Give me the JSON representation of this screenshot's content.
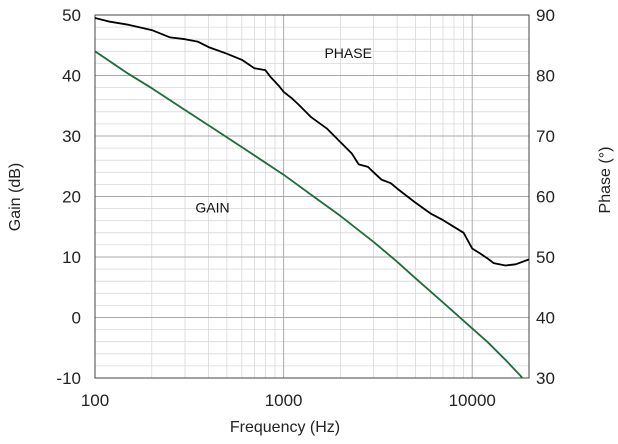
{
  "chart_data": {
    "type": "line",
    "xscale": "log",
    "xlabel": "Frequency (Hz)",
    "ylabel_left": "Gain (dB)",
    "ylabel_right": "Phase (°)",
    "xlim": [
      100,
      20000
    ],
    "ylim_left": [
      -10,
      50
    ],
    "ylim_right": [
      30,
      90
    ],
    "x_ticks": [
      {
        "value": 100,
        "label": "100"
      },
      {
        "value": 1000,
        "label": "1000"
      },
      {
        "value": 10000,
        "label": "10000"
      }
    ],
    "y_left_ticks": [
      {
        "value": 50,
        "label": "50"
      },
      {
        "value": 40,
        "label": "40"
      },
      {
        "value": 30,
        "label": "30"
      },
      {
        "value": 20,
        "label": "20"
      },
      {
        "value": 10,
        "label": "10"
      },
      {
        "value": 0,
        "label": "0"
      },
      {
        "value": -10,
        "label": "-10"
      }
    ],
    "y_right_ticks": [
      {
        "value": 90,
        "label": "90"
      },
      {
        "value": 80,
        "label": "80"
      },
      {
        "value": 70,
        "label": "70"
      },
      {
        "value": 60,
        "label": "60"
      },
      {
        "value": 50,
        "label": "50"
      },
      {
        "value": 40,
        "label": "40"
      },
      {
        "value": 30,
        "label": "30"
      }
    ],
    "grid": true,
    "series": [
      {
        "name": "PHASE",
        "axis": "right",
        "color": "#000000",
        "points": [
          [
            100,
            89.5
          ],
          [
            120,
            88.9
          ],
          [
            150,
            88.4
          ],
          [
            200,
            87.5
          ],
          [
            250,
            86.3
          ],
          [
            300,
            86.0
          ],
          [
            350,
            85.6
          ],
          [
            400,
            84.7
          ],
          [
            500,
            83.6
          ],
          [
            600,
            82.6
          ],
          [
            700,
            81.2
          ],
          [
            800,
            80.9
          ],
          [
            850,
            79.8
          ],
          [
            950,
            78.2
          ],
          [
            1000,
            77.3
          ],
          [
            1100,
            76.3
          ],
          [
            1200,
            75.2
          ],
          [
            1400,
            73.1
          ],
          [
            1700,
            71.2
          ],
          [
            2000,
            69.0
          ],
          [
            2300,
            67.1
          ],
          [
            2500,
            65.3
          ],
          [
            2800,
            64.9
          ],
          [
            3000,
            64.0
          ],
          [
            3300,
            62.8
          ],
          [
            3700,
            62.2
          ],
          [
            4000,
            61.3
          ],
          [
            5000,
            59.0
          ],
          [
            6000,
            57.2
          ],
          [
            7000,
            56.1
          ],
          [
            8000,
            55.0
          ],
          [
            9000,
            54.0
          ],
          [
            10000,
            51.4
          ],
          [
            11000,
            50.6
          ],
          [
            12000,
            49.8
          ],
          [
            13000,
            49.0
          ],
          [
            15000,
            48.6
          ],
          [
            17000,
            48.8
          ],
          [
            20000,
            49.6
          ]
        ]
      },
      {
        "name": "GAIN",
        "axis": "left",
        "color": "#1f6b3a",
        "points": [
          [
            100,
            44.0
          ],
          [
            150,
            40.3
          ],
          [
            200,
            37.9
          ],
          [
            300,
            34.3
          ],
          [
            500,
            29.8
          ],
          [
            700,
            26.8
          ],
          [
            1000,
            23.6
          ],
          [
            1500,
            19.6
          ],
          [
            2000,
            16.8
          ],
          [
            3000,
            12.5
          ],
          [
            4000,
            9.2
          ],
          [
            5000,
            6.5
          ],
          [
            7000,
            2.5
          ],
          [
            10000,
            -1.8
          ],
          [
            12000,
            -4.0
          ],
          [
            15000,
            -7.0
          ],
          [
            18000,
            -9.6
          ],
          [
            20000,
            -11.5
          ]
        ]
      }
    ],
    "annotations": [
      {
        "text": "PHASE",
        "x": 2200,
        "y_right": 83.7
      },
      {
        "text": "GAIN",
        "x": 420,
        "y_left": 18.2
      }
    ]
  }
}
